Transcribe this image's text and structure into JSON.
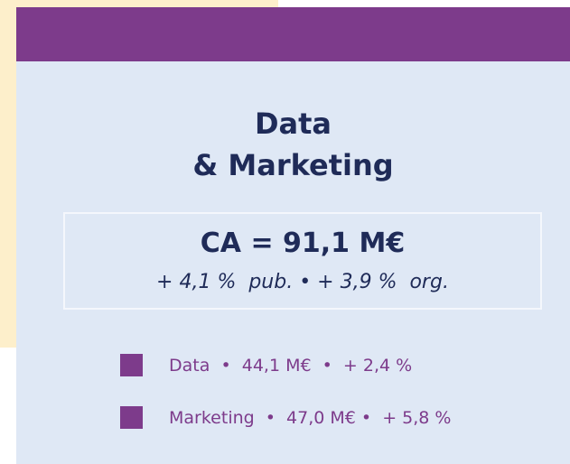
{
  "card": {
    "title_lines": [
      "Data",
      "& Marketing"
    ],
    "kpi": {
      "main": "CA = 91,1 M€",
      "sub": "+ 4,1 %  pub. • + 3,9 %  org."
    },
    "items": [
      "Data  •  44,1 M€  •  + 2,4 %",
      "Marketing  •  47,0 M€ •  + 5,8 %"
    ]
  }
}
